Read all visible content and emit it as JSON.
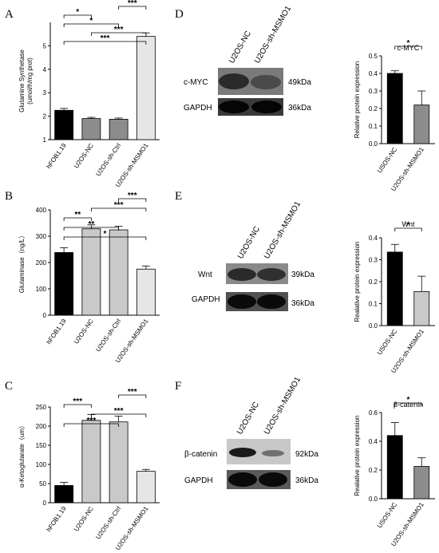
{
  "colors": {
    "black": "#000000",
    "gray1": "#8c8c8c",
    "gray2": "#c9c9c9",
    "gray3": "#e6e6e6"
  },
  "panels": {
    "A": {
      "letter": "A"
    },
    "B": {
      "letter": "B"
    },
    "C": {
      "letter": "C"
    },
    "D": {
      "letter": "D",
      "lanes": [
        "U2OS-NC",
        "U2OS-sh-MSMO1"
      ],
      "rows": [
        {
          "name": "c-MYC",
          "size": "49kDa"
        },
        {
          "name": "GAPDH",
          "size": "36kDa"
        }
      ]
    },
    "E": {
      "letter": "E",
      "lanes": [
        "U2OS-NC",
        "U2OS-sh-MSMO1"
      ],
      "rows": [
        {
          "name": "Wnt",
          "size": "39kDa"
        },
        {
          "name": "GAPDH",
          "size": "36kDa"
        }
      ]
    },
    "F": {
      "letter": "F",
      "lanes": [
        "U2OS-NC",
        "U2OS-sh-MSMO1"
      ],
      "rows": [
        {
          "name": "β-catenin",
          "size": "92kDa"
        },
        {
          "name": "GAPDH",
          "size": "36kDa"
        }
      ]
    }
  },
  "chart_data": [
    {
      "id": "A",
      "type": "bar",
      "ylabel": "Glutamine Synthetase",
      "ylabel2": "(umol/h/mg prot)",
      "categories": [
        "hFOB1.19",
        "U2OS-NC",
        "U2OS-sh-Ctrl",
        "U2OS-sh-MSMO1"
      ],
      "values": [
        2.25,
        1.9,
        1.87,
        5.4
      ],
      "errors": [
        0.08,
        0.05,
        0.05,
        0.15
      ],
      "ylim": [
        1,
        6
      ],
      "yticks": [
        1,
        2,
        3,
        4,
        5
      ],
      "significance": [
        {
          "from": 0,
          "to": 3,
          "label": "***"
        },
        {
          "from": 1,
          "to": 3,
          "label": "***"
        },
        {
          "from": 0,
          "to": 2,
          "label": "*"
        },
        {
          "from": 0,
          "to": 1,
          "label": "*"
        },
        {
          "from": 2,
          "to": 3,
          "label": "***"
        }
      ]
    },
    {
      "id": "B",
      "type": "bar",
      "ylabel": "Glutaminase（ng/L）",
      "categories": [
        "hFOB1.19",
        "U2OS-NC",
        "U2OS-sh-Ctrl",
        "U2OS-sh-MSMO1"
      ],
      "values": [
        238,
        328,
        324,
        175
      ],
      "errors": [
        18,
        15,
        14,
        12
      ],
      "ylim": [
        0,
        400
      ],
      "yticks": [
        0,
        100,
        200,
        300,
        400
      ],
      "significance": [
        {
          "from": 0,
          "to": 3,
          "label": "*"
        },
        {
          "from": 0,
          "to": 2,
          "label": "**"
        },
        {
          "from": 0,
          "to": 1,
          "label": "**"
        },
        {
          "from": 1,
          "to": 3,
          "label": "***"
        },
        {
          "from": 2,
          "to": 3,
          "label": "***"
        }
      ]
    },
    {
      "id": "C",
      "type": "bar",
      "ylabel": "α-Ketoglutarate（um）",
      "categories": [
        "hFOB1.19",
        "U2OS-NC",
        "U2OS-sh-Ctrl",
        "U2OS-sh-MSMO1"
      ],
      "values": [
        45,
        215,
        211,
        82
      ],
      "errors": [
        8,
        15,
        15,
        5
      ],
      "ylim": [
        0,
        250
      ],
      "yticks": [
        0,
        50,
        100,
        150,
        200,
        250
      ],
      "significance": [
        {
          "from": 0,
          "to": 2,
          "label": "***"
        },
        {
          "from": 1,
          "to": 3,
          "label": "***"
        },
        {
          "from": 0,
          "to": 1,
          "label": "***"
        },
        {
          "from": 2,
          "to": 3,
          "label": "***"
        }
      ]
    },
    {
      "id": "D",
      "type": "bar",
      "title": "c-MYC",
      "ylabel": "Relative protein expression",
      "categories": [
        "USOS-NC",
        "U2OS-sh-MSMO1"
      ],
      "values": [
        0.4,
        0.22
      ],
      "errors": [
        0.015,
        0.08
      ],
      "ylim": [
        0,
        0.5
      ],
      "yticks": [
        0.0,
        0.1,
        0.2,
        0.3,
        0.4,
        0.5
      ],
      "significance": [
        {
          "from": 0,
          "to": 1,
          "label": "*"
        }
      ]
    },
    {
      "id": "E",
      "type": "bar",
      "title": "Wnt",
      "ylabel": "Realative protein expression",
      "categories": [
        "USOS-NC",
        "U2OS-sh-MSMO1"
      ],
      "values": [
        0.335,
        0.155
      ],
      "errors": [
        0.035,
        0.07
      ],
      "ylim": [
        0,
        0.4
      ],
      "yticks": [
        0.0,
        0.1,
        0.2,
        0.3,
        0.4
      ],
      "significance": [
        {
          "from": 0,
          "to": 1,
          "label": "*"
        }
      ]
    },
    {
      "id": "F",
      "type": "bar",
      "title": "β-catenin",
      "ylabel": "Realative protein expression",
      "categories": [
        "USOS-NC",
        "U2OS-sh-MSMO1"
      ],
      "values": [
        0.44,
        0.225
      ],
      "errors": [
        0.09,
        0.06
      ],
      "ylim": [
        0,
        0.6
      ],
      "yticks": [
        0.0,
        0.2,
        0.4,
        0.6
      ],
      "significance": [
        {
          "from": 0,
          "to": 1,
          "label": "*"
        }
      ]
    }
  ]
}
